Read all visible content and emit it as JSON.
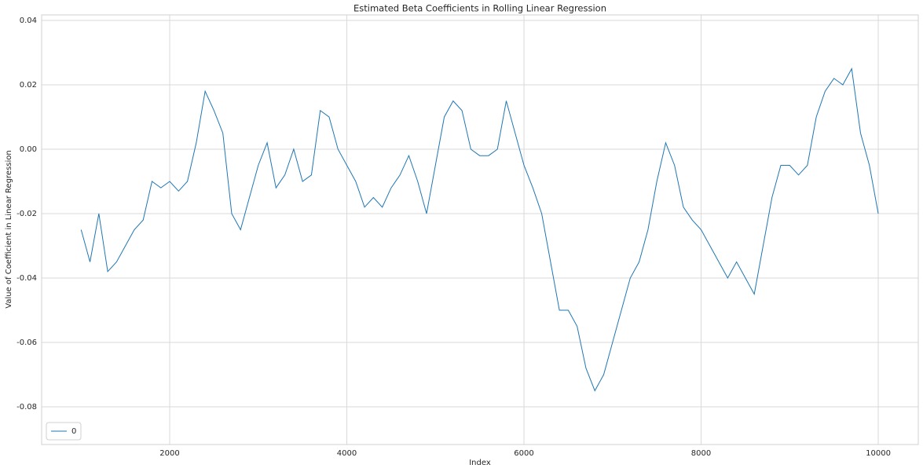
{
  "chart_data": {
    "type": "line",
    "title": "Estimated Beta Coefficients in Rolling Linear Regression",
    "x_label": "Index",
    "y_label": "Value of Coefficient in Linear Regression",
    "x": [
      1000,
      1100,
      1200,
      1300,
      1400,
      1500,
      1600,
      1700,
      1800,
      1900,
      2000,
      2100,
      2200,
      2300,
      2400,
      2500,
      2600,
      2700,
      2800,
      2900,
      3000,
      3100,
      3200,
      3300,
      3400,
      3500,
      3600,
      3700,
      3800,
      3900,
      4000,
      4100,
      4200,
      4300,
      4400,
      4500,
      4600,
      4700,
      4800,
      4900,
      5000,
      5100,
      5200,
      5300,
      5400,
      5500,
      5600,
      5700,
      5800,
      5900,
      6000,
      6100,
      6200,
      6300,
      6400,
      6500,
      6600,
      6700,
      6800,
      6900,
      7000,
      7100,
      7200,
      7300,
      7400,
      7500,
      7600,
      7700,
      7800,
      7900,
      8000,
      8100,
      8200,
      8300,
      8400,
      8500,
      8600,
      8700,
      8800,
      8900,
      9000,
      9100,
      9200,
      9300,
      9400,
      9500,
      9600,
      9700,
      9800,
      9900,
      10000
    ],
    "series": [
      {
        "name": "0",
        "color": "#1f77b4",
        "values": [
          -0.025,
          -0.035,
          -0.02,
          -0.038,
          -0.035,
          -0.03,
          -0.025,
          -0.022,
          -0.01,
          -0.012,
          -0.01,
          -0.013,
          -0.01,
          0.002,
          0.018,
          0.012,
          0.005,
          -0.02,
          -0.025,
          -0.015,
          -0.005,
          0.002,
          -0.012,
          -0.008,
          0.0,
          -0.01,
          -0.008,
          0.012,
          0.01,
          0.0,
          -0.005,
          -0.01,
          -0.018,
          -0.015,
          -0.018,
          -0.012,
          -0.008,
          -0.002,
          -0.01,
          -0.02,
          -0.005,
          0.01,
          0.015,
          0.012,
          0.0,
          -0.002,
          -0.002,
          0.0,
          0.015,
          0.005,
          -0.005,
          -0.012,
          -0.02,
          -0.035,
          -0.05,
          -0.05,
          -0.055,
          -0.068,
          -0.075,
          -0.07,
          -0.06,
          -0.05,
          -0.04,
          -0.035,
          -0.025,
          -0.01,
          0.002,
          -0.005,
          -0.018,
          -0.022,
          -0.025,
          -0.03,
          -0.035,
          -0.04,
          -0.035,
          -0.04,
          -0.045,
          -0.03,
          -0.015,
          -0.005,
          -0.005,
          -0.008,
          -0.005,
          0.01,
          0.018,
          0.022,
          0.02,
          0.025,
          0.005,
          -0.005,
          -0.02
        ]
      }
    ],
    "xlim": [
      554,
      10452
    ],
    "xticks": [
      2000,
      4000,
      6000,
      8000,
      10000
    ],
    "ylim": [
      -0.0917,
      0.0417
    ],
    "yticks": [
      -0.08,
      -0.06,
      -0.04,
      -0.02,
      {
        "value": 0,
        "label": "0.00"
      },
      0.02,
      0.04
    ],
    "grid": true,
    "legend": "lower left"
  }
}
